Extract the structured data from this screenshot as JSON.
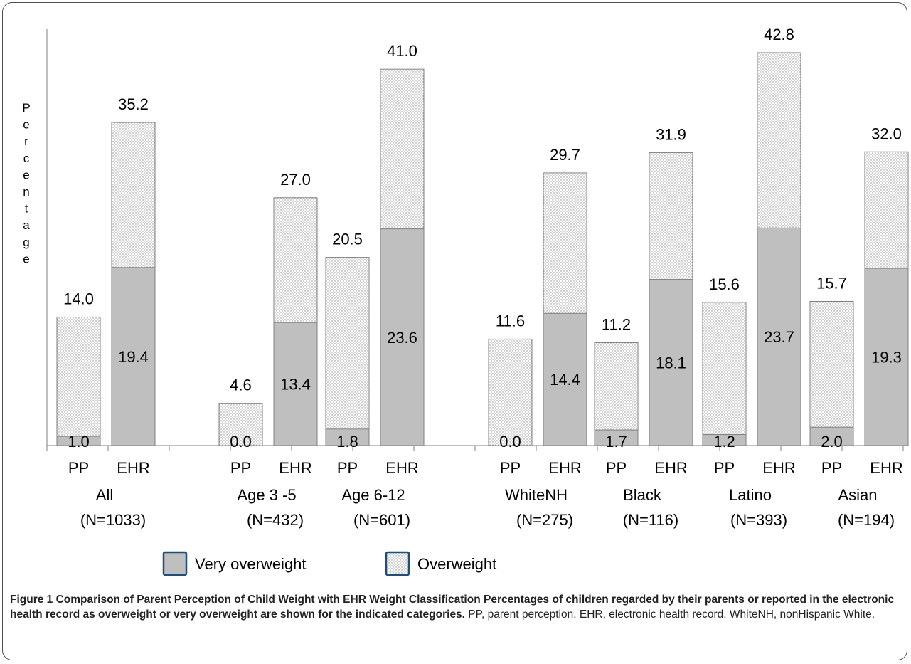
{
  "chart_data": {
    "type": "bar",
    "stacked": true,
    "ylabel": "Percentage",
    "ylim": [
      0,
      45
    ],
    "grid": false,
    "legend_position": "bottom",
    "series": [
      {
        "name": "Very overweight",
        "pattern": "solid",
        "color": "#bfbfbf"
      },
      {
        "name": "Overweight",
        "pattern": "dotted",
        "color": "#ffffff"
      }
    ],
    "groups": [
      {
        "label": "All",
        "n_label": "(N=1033)",
        "bars": [
          {
            "label": "PP",
            "very": 1.0,
            "total": 14.0,
            "very_label": "1.0",
            "total_label": "14.0"
          },
          {
            "label": "EHR",
            "very": 19.4,
            "total": 35.2,
            "very_label": "19.4",
            "total_label": "35.2"
          }
        ]
      },
      {
        "label": "Age 3 -5",
        "n_label": "(N=432)",
        "bars": [
          {
            "label": "PP",
            "very": 0.0,
            "total": 4.6,
            "very_label": "0.0",
            "total_label": "4.6"
          },
          {
            "label": "EHR",
            "very": 13.4,
            "total": 27.0,
            "very_label": "13.4",
            "total_label": "27.0"
          }
        ]
      },
      {
        "label": "Age 6-12",
        "n_label": "(N=601)",
        "bars": [
          {
            "label": "PP",
            "very": 1.8,
            "total": 20.5,
            "very_label": "1.8",
            "total_label": "20.5"
          },
          {
            "label": "EHR",
            "very": 23.6,
            "total": 41.0,
            "very_label": "23.6",
            "total_label": "41.0"
          }
        ]
      },
      {
        "label": "WhiteNH",
        "n_label": "(N=275)",
        "bars": [
          {
            "label": "PP",
            "very": 0.0,
            "total": 11.6,
            "very_label": "0.0",
            "total_label": "11.6"
          },
          {
            "label": "EHR",
            "very": 14.4,
            "total": 29.7,
            "very_label": "14.4",
            "total_label": "29.7"
          }
        ]
      },
      {
        "label": "Black",
        "n_label": "(N=116)",
        "bars": [
          {
            "label": "PP",
            "very": 1.7,
            "total": 11.2,
            "very_label": "1.7",
            "total_label": "11.2"
          },
          {
            "label": "EHR",
            "very": 18.1,
            "total": 31.9,
            "very_label": "18.1",
            "total_label": "31.9"
          }
        ]
      },
      {
        "label": "Latino",
        "n_label": "(N=393)",
        "bars": [
          {
            "label": "PP",
            "very": 1.2,
            "total": 15.6,
            "very_label": "1.2",
            "total_label": "15.6"
          },
          {
            "label": "EHR",
            "very": 23.7,
            "total": 42.8,
            "very_label": "23.7",
            "total_label": "42.8"
          }
        ]
      },
      {
        "label": "Asian",
        "n_label": "(N=194)",
        "bars": [
          {
            "label": "PP",
            "very": 2.0,
            "total": 15.7,
            "very_label": "2.0",
            "total_label": "15.7"
          },
          {
            "label": "EHR",
            "very": 19.3,
            "total": 32.0,
            "very_label": "19.3",
            "total_label": "32.0"
          }
        ]
      }
    ]
  },
  "caption": {
    "bold": "Figure 1 Comparison of Parent Perception of Child Weight with EHR Weight Classification Percentages of children regarded by their parents or reported in the electronic health record as overweight or very overweight are shown for the indicated categories.",
    "normal": " PP, parent perception. EHR, electronic health record. WhiteNH, nonHispanic White."
  }
}
